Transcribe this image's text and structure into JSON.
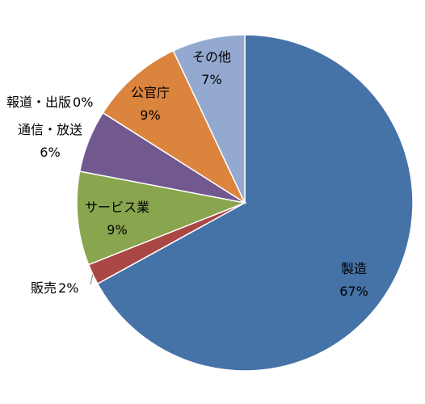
{
  "chart_data": {
    "type": "pie",
    "title": "",
    "slices": [
      {
        "label": "製造",
        "value": 67,
        "value_text": "67%",
        "color": "#4572a7"
      },
      {
        "label": "販売",
        "value": 2,
        "value_text": "2%",
        "color": "#aa4643"
      },
      {
        "label": "サービス業",
        "value": 9,
        "value_text": "9%",
        "color": "#89a54e"
      },
      {
        "label": "通信・放送",
        "value": 6,
        "value_text": "6%",
        "color": "#71588f"
      },
      {
        "label": "報道・出版",
        "value": 0,
        "value_text": "0%",
        "color": "#4198af"
      },
      {
        "label": "公官庁",
        "value": 9,
        "value_text": "9%",
        "color": "#db843d"
      },
      {
        "label": "その他",
        "value": 7,
        "value_text": "7%",
        "color": "#93a9cf"
      }
    ],
    "legend": "none",
    "start": "top",
    "direction": "clockwise"
  }
}
